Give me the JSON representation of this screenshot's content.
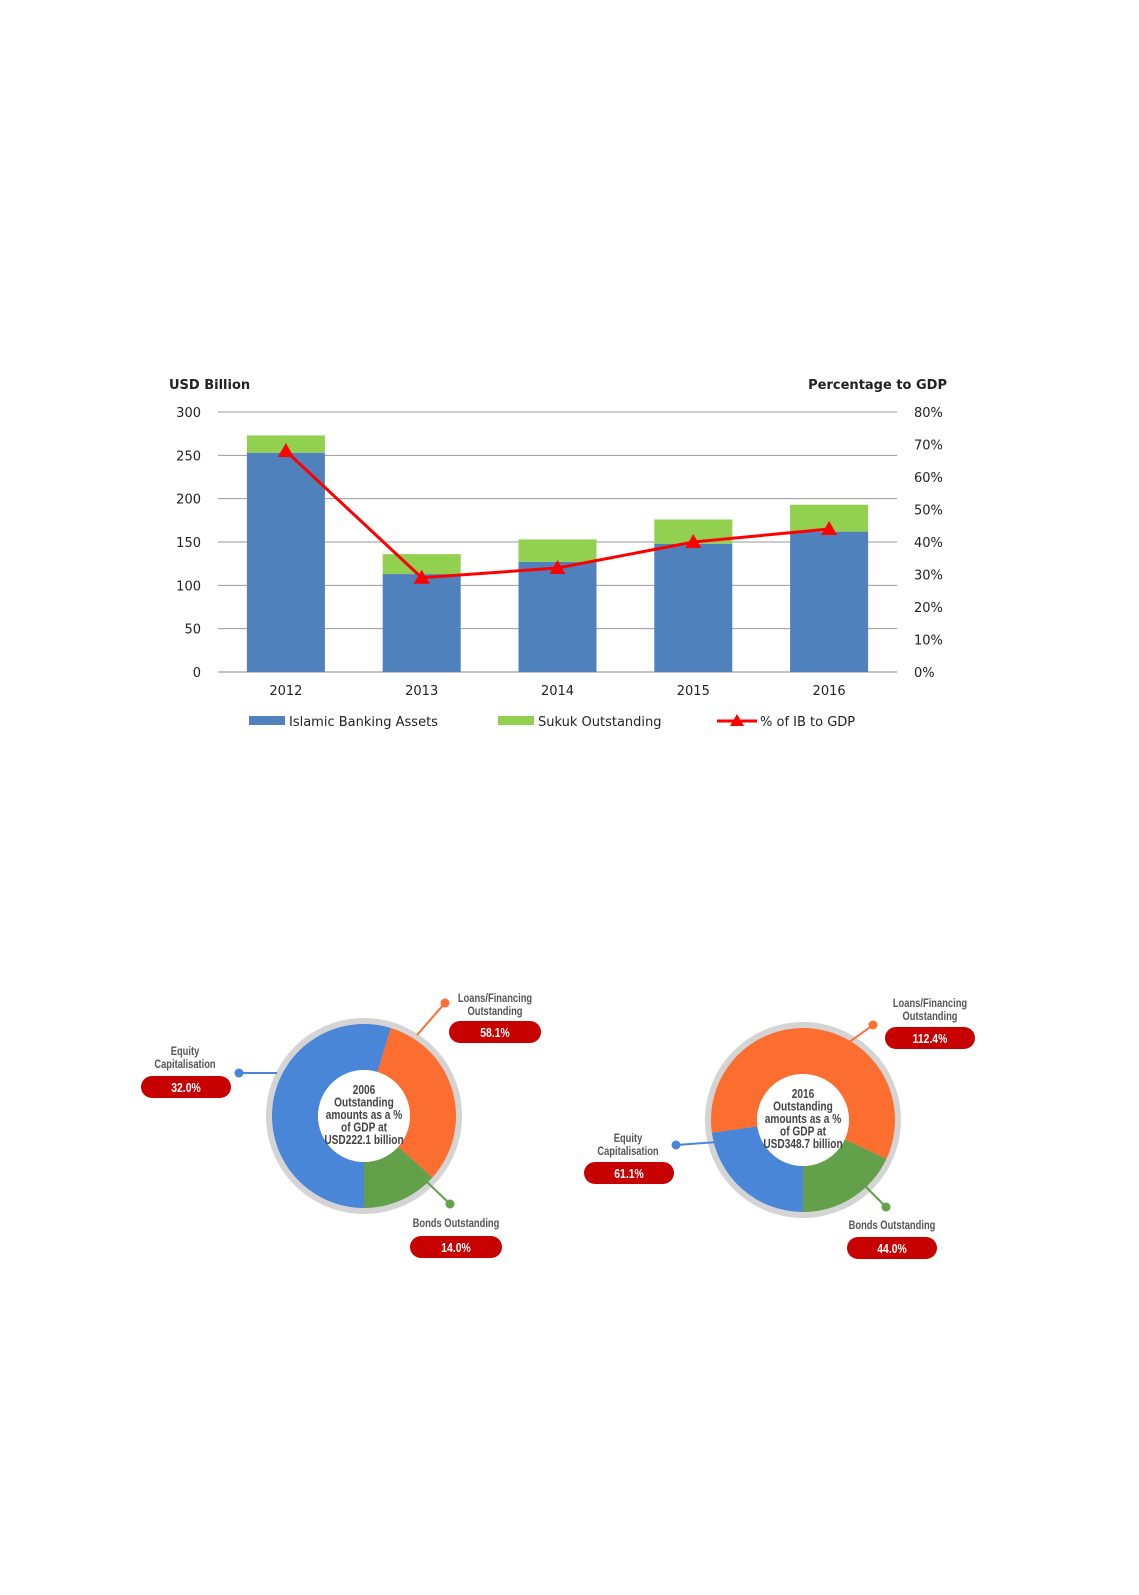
{
  "chart_data": [
    {
      "type": "bar",
      "stacked": true,
      "categories": [
        "2012",
        "2013",
        "2014",
        "2015",
        "2016"
      ],
      "ylabel": "USD Billion",
      "y2label": "Percentage to GDP",
      "ylim": [
        0,
        300
      ],
      "yticks": [
        "0",
        "50",
        "100",
        "150",
        "200",
        "250",
        "300"
      ],
      "y2lim": [
        0,
        80
      ],
      "y2ticks": [
        "0%",
        "10%",
        "20%",
        "30%",
        "40%",
        "50%",
        "60%",
        "70%",
        "80%"
      ],
      "grid": true,
      "legend_position": "bottom",
      "series": [
        {
          "name": "Islamic Banking Assets",
          "type": "bar",
          "values": [
            253,
            113,
            127,
            148,
            162
          ],
          "color": "#4f81bd"
        },
        {
          "name": "Sukuk Outstanding",
          "type": "bar",
          "values": [
            20,
            23,
            26,
            28,
            31
          ],
          "color": "#92d050"
        },
        {
          "name": "% of IB to GDP",
          "type": "line",
          "axis": "right",
          "values": [
            68,
            29,
            32,
            40,
            44
          ],
          "color": "#ff0000"
        }
      ]
    },
    {
      "type": "pie",
      "center_text": [
        "2006",
        "Outstanding",
        "amounts as a %",
        "of GDP at",
        "USD222.1 billion"
      ],
      "slices": [
        {
          "label": "Equity Capitalisation",
          "value": "32.0%",
          "color": "#4a86d8"
        },
        {
          "label": "Loans/Financing Outstanding",
          "value": "58.1%",
          "color": "#fb6e30"
        },
        {
          "label": "Bonds Outstanding",
          "value": "14.0%",
          "color": "#62a14a"
        }
      ]
    },
    {
      "type": "pie",
      "center_text": [
        "2016",
        "Outstanding",
        "amounts as a %",
        "of GDP at",
        "USD348.7 billion"
      ],
      "slices": [
        {
          "label": "Equity Capitalisation",
          "value": "61.1%",
          "color": "#4a86d8"
        },
        {
          "label": "Loans/Financing Outstanding",
          "value": "112.4%",
          "color": "#fb6e30"
        },
        {
          "label": "Bonds Outstanding",
          "value": "44.0%",
          "color": "#62a14a"
        }
      ]
    }
  ]
}
